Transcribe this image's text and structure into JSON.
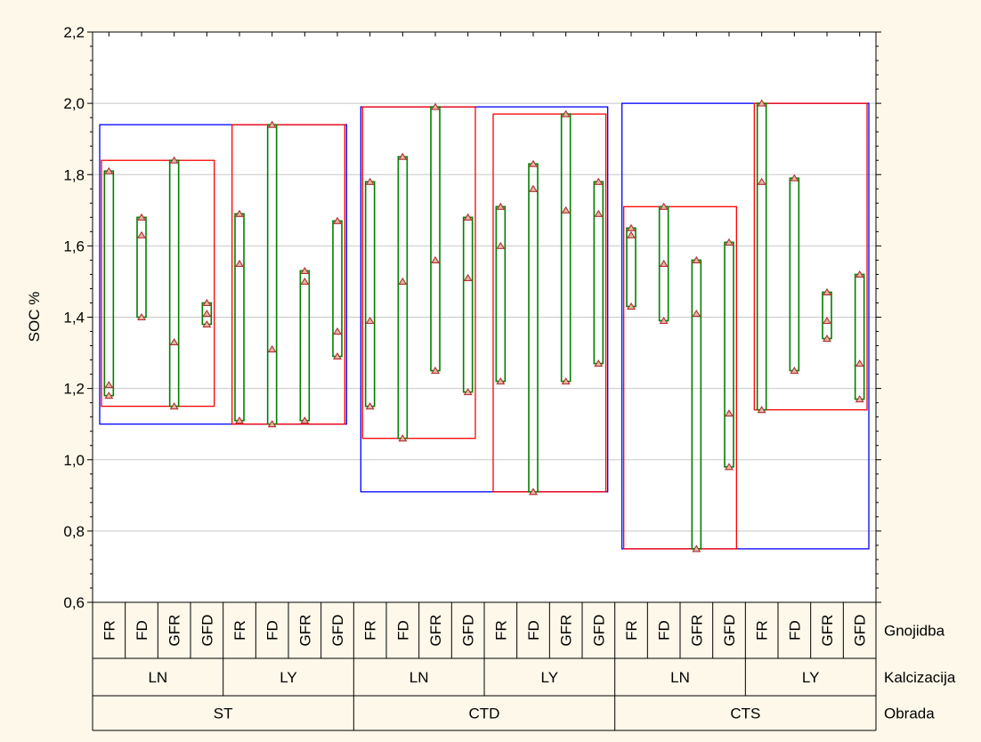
{
  "colors": {
    "background": "#fdf8ea",
    "plot_bg": "#ffffff",
    "grid": "#c8c8c8",
    "range_box": "#008000",
    "marker": "#b03030",
    "obrada_box": "#0000ff",
    "kalcizacija_box": "#ff0000"
  },
  "chart_data": {
    "type": "range-plot",
    "title": "",
    "ylabel": "SOC %",
    "ylim": [
      0.6,
      2.2
    ],
    "yticks": [
      0.6,
      0.8,
      1.0,
      1.2,
      1.4,
      1.6,
      1.8,
      2.0,
      2.2
    ],
    "ytick_labels": [
      "0,6",
      "0,8",
      "1,0",
      "1,2",
      "1,4",
      "1,6",
      "1,8",
      "2,0",
      "2,2"
    ],
    "grid": true,
    "factor_names": [
      "Gnojidba",
      "Kalcizacija",
      "Obrada"
    ],
    "obrada_levels": [
      "ST",
      "CTD",
      "CTS"
    ],
    "kalcizacija_levels": [
      "LN",
      "LY"
    ],
    "gnojidba_levels": [
      "FR",
      "FD",
      "GFR",
      "GFD"
    ],
    "groups": [
      {
        "obrada": "ST",
        "kalcizacija": "LN",
        "gnojidba": "FR",
        "min": 1.18,
        "max": 1.81,
        "points": [
          1.18,
          1.21,
          1.81
        ]
      },
      {
        "obrada": "ST",
        "kalcizacija": "LN",
        "gnojidba": "FD",
        "min": 1.4,
        "max": 1.68,
        "points": [
          1.4,
          1.63,
          1.68
        ]
      },
      {
        "obrada": "ST",
        "kalcizacija": "LN",
        "gnojidba": "GFR",
        "min": 1.15,
        "max": 1.84,
        "points": [
          1.15,
          1.33,
          1.84
        ]
      },
      {
        "obrada": "ST",
        "kalcizacija": "LN",
        "gnojidba": "GFD",
        "min": 1.38,
        "max": 1.44,
        "points": [
          1.38,
          1.41,
          1.44
        ]
      },
      {
        "obrada": "ST",
        "kalcizacija": "LY",
        "gnojidba": "FR",
        "min": 1.11,
        "max": 1.69,
        "points": [
          1.11,
          1.55,
          1.69
        ]
      },
      {
        "obrada": "ST",
        "kalcizacija": "LY",
        "gnojidba": "FD",
        "min": 1.1,
        "max": 1.94,
        "points": [
          1.1,
          1.31,
          1.94
        ]
      },
      {
        "obrada": "ST",
        "kalcizacija": "LY",
        "gnojidba": "GFR",
        "min": 1.11,
        "max": 1.53,
        "points": [
          1.11,
          1.5,
          1.53
        ]
      },
      {
        "obrada": "ST",
        "kalcizacija": "LY",
        "gnojidba": "GFD",
        "min": 1.29,
        "max": 1.67,
        "points": [
          1.29,
          1.36,
          1.67
        ]
      },
      {
        "obrada": "CTD",
        "kalcizacija": "LN",
        "gnojidba": "FR",
        "min": 1.15,
        "max": 1.78,
        "points": [
          1.15,
          1.39,
          1.78
        ]
      },
      {
        "obrada": "CTD",
        "kalcizacija": "LN",
        "gnojidba": "FD",
        "min": 1.06,
        "max": 1.85,
        "points": [
          1.06,
          1.5,
          1.85
        ]
      },
      {
        "obrada": "CTD",
        "kalcizacija": "LN",
        "gnojidba": "GFR",
        "min": 1.25,
        "max": 1.99,
        "points": [
          1.25,
          1.56,
          1.99
        ]
      },
      {
        "obrada": "CTD",
        "kalcizacija": "LN",
        "gnojidba": "GFD",
        "min": 1.19,
        "max": 1.68,
        "points": [
          1.19,
          1.51,
          1.68
        ]
      },
      {
        "obrada": "CTD",
        "kalcizacija": "LY",
        "gnojidba": "FR",
        "min": 1.22,
        "max": 1.71,
        "points": [
          1.22,
          1.6,
          1.71
        ]
      },
      {
        "obrada": "CTD",
        "kalcizacija": "LY",
        "gnojidba": "FD",
        "min": 0.91,
        "max": 1.83,
        "points": [
          0.91,
          1.76,
          1.83
        ]
      },
      {
        "obrada": "CTD",
        "kalcizacija": "LY",
        "gnojidba": "GFR",
        "min": 1.22,
        "max": 1.97,
        "points": [
          1.22,
          1.7,
          1.97
        ]
      },
      {
        "obrada": "CTD",
        "kalcizacija": "LY",
        "gnojidba": "GFD",
        "min": 1.27,
        "max": 1.78,
        "points": [
          1.27,
          1.69,
          1.78
        ]
      },
      {
        "obrada": "CTS",
        "kalcizacija": "LN",
        "gnojidba": "FR",
        "min": 1.43,
        "max": 1.65,
        "points": [
          1.43,
          1.63,
          1.65
        ]
      },
      {
        "obrada": "CTS",
        "kalcizacija": "LN",
        "gnojidba": "FD",
        "min": 1.39,
        "max": 1.71,
        "points": [
          1.39,
          1.55,
          1.71
        ]
      },
      {
        "obrada": "CTS",
        "kalcizacija": "LN",
        "gnojidba": "GFR",
        "min": 0.75,
        "max": 1.56,
        "points": [
          0.75,
          1.41,
          1.56
        ]
      },
      {
        "obrada": "CTS",
        "kalcizacija": "LN",
        "gnojidba": "GFD",
        "min": 0.98,
        "max": 1.61,
        "points": [
          0.98,
          1.13,
          1.61
        ]
      },
      {
        "obrada": "CTS",
        "kalcizacija": "LY",
        "gnojidba": "FR",
        "min": 1.14,
        "max": 2.0,
        "points": [
          1.14,
          1.78,
          2.0
        ]
      },
      {
        "obrada": "CTS",
        "kalcizacija": "LY",
        "gnojidba": "FD",
        "min": 1.25,
        "max": 1.79,
        "points": [
          1.25,
          1.79
        ]
      },
      {
        "obrada": "CTS",
        "kalcizacija": "LY",
        "gnojidba": "GFR",
        "min": 1.34,
        "max": 1.47,
        "points": [
          1.34,
          1.39,
          1.47
        ]
      },
      {
        "obrada": "CTS",
        "kalcizacija": "LY",
        "gnojidba": "GFD",
        "min": 1.17,
        "max": 1.52,
        "points": [
          1.17,
          1.27,
          1.52
        ]
      }
    ]
  }
}
